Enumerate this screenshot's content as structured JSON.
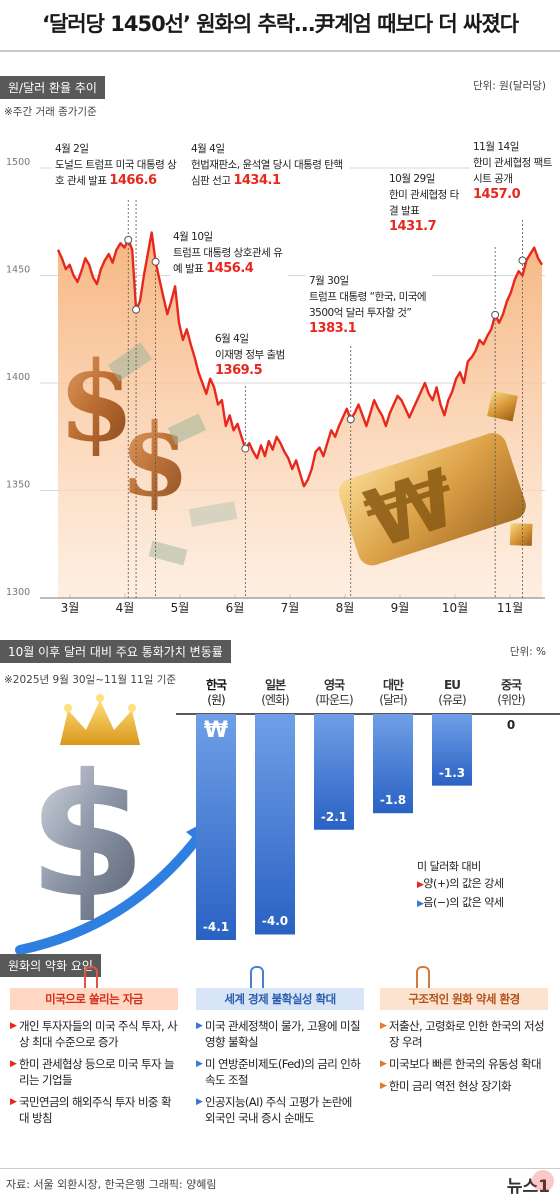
{
  "title": "‘달러당 1450선’ 원화의 추락…尹계엄 때보다 더 싸졌다",
  "section1": {
    "tag": "원/달러 환율 추이",
    "unit": "단위: 원(달러당)",
    "note": "※주간 거래 종가기준"
  },
  "chart_data": [
    {
      "type": "line",
      "title": "원/달러 환율 추이",
      "ylim": [
        1300,
        1500
      ],
      "y_ticks": [
        1300,
        1350,
        1400,
        1450,
        1500
      ],
      "x_tick_labels": [
        "3월",
        "4월",
        "5월",
        "6월",
        "7월",
        "8월",
        "9월",
        "10월",
        "11월"
      ],
      "annotations": [
        {
          "date": "4월 2일",
          "text": "도널드 트럼프 미국 대통령 상호 관세 발표",
          "value": 1466.6
        },
        {
          "date": "4월 4일",
          "text": "헌법재판소, 윤석열 당시 대통령 탄핵 심판 선고",
          "value": 1434.1
        },
        {
          "date": "4월 10일",
          "text": "트럼프 대통령 상호관세 유예 발표",
          "value": 1456.4
        },
        {
          "date": "6월 4일",
          "text": "이재명 정부 출범",
          "value": 1369.5
        },
        {
          "date": "7월 30일",
          "text": "트럼프 대통령 “한국, 미국에 3500억 달러 투자할 것”",
          "value": 1383.1
        },
        {
          "date": "10월 29일",
          "text": "한미 관세협정 타결 발표",
          "value": 1431.7
        },
        {
          "date": "11월 14일",
          "text": "한미 관세협정 팩트시트 공개",
          "value": 1457.0
        }
      ],
      "series": [
        {
          "color": "#e8281e",
          "values": [
            1462,
            1458,
            1453,
            1455,
            1450,
            1447,
            1452,
            1458,
            1455,
            1449,
            1446,
            1453,
            1457,
            1460,
            1456,
            1462,
            1465,
            1463,
            1466.6,
            1462,
            1434.1,
            1438,
            1450,
            1460,
            1470,
            1456.4,
            1448,
            1440,
            1432,
            1438,
            1445,
            1428,
            1420,
            1425,
            1418,
            1412,
            1405,
            1400,
            1395,
            1402,
            1398,
            1390,
            1392,
            1380,
            1385,
            1378,
            1381,
            1375,
            1369.5,
            1372,
            1368,
            1365,
            1371,
            1366,
            1373,
            1369,
            1375,
            1372,
            1368,
            1365,
            1360,
            1364,
            1358,
            1352,
            1355,
            1360,
            1368,
            1370,
            1366,
            1372,
            1378,
            1375,
            1380,
            1384,
            1388,
            1383.1,
            1386,
            1390,
            1385,
            1380,
            1386,
            1392,
            1388,
            1385,
            1380,
            1386,
            1390,
            1394,
            1392,
            1388,
            1384,
            1388,
            1392,
            1396,
            1400,
            1395,
            1392,
            1398,
            1390,
            1385,
            1392,
            1396,
            1402,
            1405,
            1400,
            1410,
            1412,
            1415,
            1420,
            1418,
            1422,
            1425,
            1431.7,
            1428,
            1432,
            1438,
            1442,
            1448,
            1452,
            1450,
            1457.0,
            1460,
            1463,
            1458,
            1455
          ]
        }
      ]
    },
    {
      "type": "bar",
      "title": "10월 이후 달러 대비 주요 통화가치 변동률",
      "categories": [
        "한국 (원)",
        "일본 (엔화)",
        "영국 (파운드)",
        "대만 (달러)",
        "EU (유로)",
        "중국 (위안)"
      ],
      "values": [
        -4.1,
        -4.0,
        -2.1,
        -1.8,
        -1.3,
        0
      ],
      "unit": "%"
    }
  ],
  "section2": {
    "tag": "10월 이후 달러 대비 주요 통화가치 변동률",
    "unit": "단위: %",
    "note": "※2025년 9월 30일~11월 11일 기준",
    "currency_lines": [
      [
        "한국",
        "(원)"
      ],
      [
        "일본",
        "(엔화)"
      ],
      [
        "영국",
        "(파운드)"
      ],
      [
        "대만",
        "(달러)"
      ],
      [
        "EU",
        "(유로)"
      ],
      [
        "중국",
        "(위안)"
      ]
    ],
    "value_labels": [
      "-4.1",
      "-4.0",
      "-2.1",
      "-1.8",
      "-1.3",
      "0"
    ],
    "won_symbol": "₩",
    "legend": {
      "title": "미 달러화 대비",
      "pos": "양(+)의 값은 강세",
      "neg": "음(−)의 값은 약세"
    }
  },
  "section3": {
    "tag": "원화의 약화 요인",
    "cols": [
      {
        "title": "미국으로 쏠리는 자금",
        "items": [
          "개인 투자자들의 미국 주식 투자, 사상 최대 수준으로 증가",
          "한미 관세협상 등으로 미국 투자 늘리는 기업들",
          "국민연금의 해외주식 투자 비중 확대 방침"
        ]
      },
      {
        "title": "세계 경제 불확실성 확대",
        "items": [
          "미국 관세정책이 물가, 고용에 미칠 영향 불확실",
          "미 연방준비제도(Fed)의 금리 인하 속도 조절",
          "인공지능(AI) 주식 고평가 논란에 외국인 국내 증시 순매도"
        ]
      },
      {
        "title": "구조적인 원화 약세 환경",
        "items": [
          "저출산, 고령화로 인한 한국의 저성장 우려",
          "미국보다 빠른 한국의 유동성 확대",
          "한미 금리 역전 현상 장기화"
        ]
      }
    ]
  },
  "footer": {
    "source": "자료: 서울 외환시장, 한국은행   그래픽: 양혜림",
    "logo": "뉴스1"
  },
  "colors": {
    "accent": "#e8281e",
    "bar_blue": "#3a78d6",
    "area_orange": "#f4b07a"
  }
}
